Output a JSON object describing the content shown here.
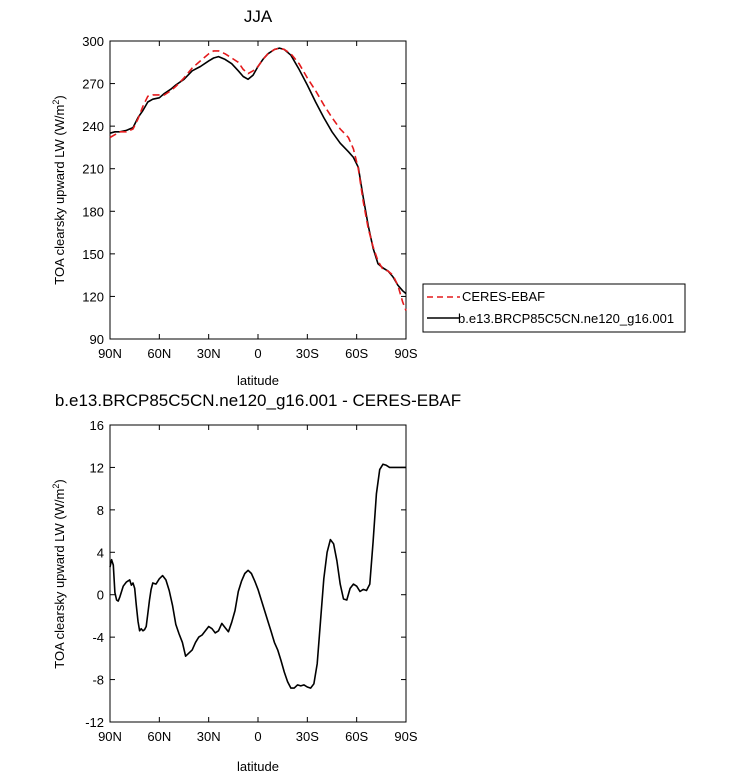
{
  "chart_data": [
    {
      "type": "line",
      "title": "JJA",
      "xlabel": "latitude",
      "ylabel": "TOA clearsky upward LW (W/m",
      "ylabel_sup": "2",
      "ylabel_end": ")",
      "xlim": [
        90,
        -90
      ],
      "ylim": [
        90,
        300
      ],
      "x_ticks": [
        90,
        60,
        30,
        0,
        -30,
        -60,
        -90
      ],
      "x_tick_labels": [
        "90N",
        "60N",
        "30N",
        "0",
        "30S",
        "60S",
        "90S"
      ],
      "y_ticks": [
        90,
        120,
        150,
        180,
        210,
        240,
        270,
        300
      ],
      "y_tick_labels": [
        "90",
        "120",
        "150",
        "180",
        "210",
        "240",
        "270",
        "300"
      ],
      "legend": "outside-right",
      "series": [
        {
          "name": "CERES-EBAF",
          "color": "#e41a1c",
          "dash": "dashed",
          "x": [
            90,
            87,
            84,
            80,
            76,
            73,
            70,
            67,
            64,
            60,
            57,
            53,
            50,
            45,
            40,
            35,
            30,
            27,
            24,
            20,
            16,
            12,
            9,
            6,
            3,
            0,
            -3,
            -6,
            -10,
            -13,
            -16,
            -20,
            -25,
            -30,
            -35,
            -40,
            -45,
            -50,
            -55,
            -58,
            -61,
            -64,
            -67,
            -70,
            -73,
            -76,
            -79,
            -82,
            -85,
            -88,
            -90
          ],
          "y": [
            232,
            234,
            236,
            236,
            238,
            245,
            254,
            261,
            262,
            262,
            262,
            265,
            268,
            274,
            281,
            286,
            291,
            293,
            293,
            291,
            288,
            285,
            280,
            277,
            279,
            282,
            287,
            291,
            294,
            295,
            294,
            291,
            284,
            274,
            265,
            255,
            246,
            238,
            232,
            224,
            210,
            187,
            168,
            155,
            145,
            139,
            138,
            135,
            128,
            116,
            110
          ]
        },
        {
          "name": "b.e13.BRCP85C5CN.ne120_g16.001",
          "color": "#000000",
          "dash": "solid",
          "x": [
            90,
            87,
            84,
            80,
            76,
            73,
            70,
            67,
            64,
            60,
            57,
            53,
            50,
            45,
            40,
            35,
            30,
            27,
            24,
            20,
            16,
            12,
            9,
            6,
            3,
            0,
            -3,
            -6,
            -10,
            -13,
            -16,
            -20,
            -25,
            -30,
            -35,
            -40,
            -45,
            -50,
            -55,
            -58,
            -61,
            -64,
            -67,
            -70,
            -73,
            -76,
            -79,
            -82,
            -85,
            -88,
            -90
          ],
          "y": [
            235,
            236,
            236,
            237,
            239,
            246,
            251,
            257,
            259,
            260,
            263,
            266,
            269,
            273,
            279,
            282,
            286,
            288,
            289,
            287,
            284,
            279,
            275,
            273,
            276,
            282,
            287,
            291,
            294,
            295,
            294,
            290,
            280,
            269,
            257,
            246,
            236,
            228,
            222,
            218,
            211,
            190,
            170,
            154,
            143,
            140,
            138,
            134,
            128,
            124,
            122
          ]
        }
      ]
    },
    {
      "type": "line",
      "title": "b.e13.BRCP85C5CN.ne120_g16.001 - CERES-EBAF",
      "xlabel": "latitude",
      "ylabel": "TOA clearsky upward LW (W/m",
      "ylabel_sup": "2",
      "ylabel_end": ")",
      "xlim": [
        90,
        -90
      ],
      "ylim": [
        -12,
        16
      ],
      "x_ticks": [
        90,
        60,
        30,
        0,
        -30,
        -60,
        -90
      ],
      "x_tick_labels": [
        "90N",
        "60N",
        "30N",
        "0",
        "30S",
        "60S",
        "90S"
      ],
      "y_ticks": [
        -12,
        -8,
        -4,
        0,
        4,
        8,
        12,
        16
      ],
      "y_tick_labels": [
        "-12",
        "-8",
        "-4",
        "0",
        "4",
        "8",
        "12",
        "16"
      ],
      "series": [
        {
          "color": "#000000",
          "dash": "solid",
          "x": [
            90,
            89,
            88,
            87,
            86,
            85,
            84,
            82,
            80,
            78,
            77,
            76,
            75,
            74,
            73,
            72,
            71,
            70,
            69,
            68,
            67,
            66,
            65,
            64,
            62,
            60,
            58,
            56,
            54,
            52,
            50,
            48,
            46,
            44,
            42,
            40,
            38,
            36,
            34,
            32,
            30,
            28,
            26,
            24,
            22,
            20,
            18,
            16,
            14,
            12,
            10,
            8,
            6,
            4,
            2,
            0,
            -2,
            -4,
            -6,
            -8,
            -10,
            -12,
            -14,
            -16,
            -18,
            -20,
            -22,
            -24,
            -26,
            -28,
            -30,
            -32,
            -34,
            -36,
            -38,
            -40,
            -42,
            -44,
            -46,
            -48,
            -50,
            -52,
            -54,
            -56,
            -58,
            -60,
            -62,
            -64,
            -66,
            -68,
            -70,
            -72,
            -74,
            -76,
            -78,
            -80,
            -82,
            -84,
            -86,
            -88,
            -89,
            -90
          ],
          "y": [
            2.6,
            3.3,
            2.8,
            0.2,
            -0.5,
            -0.6,
            -0.2,
            0.8,
            1.2,
            1.4,
            0.9,
            1.1,
            0.6,
            -1.0,
            -2.5,
            -3.4,
            -3.2,
            -3.4,
            -3.3,
            -3.0,
            -1.8,
            -0.5,
            0.5,
            1.1,
            1.0,
            1.5,
            1.8,
            1.4,
            0.4,
            -1.0,
            -2.8,
            -3.7,
            -4.5,
            -5.8,
            -5.5,
            -5.2,
            -4.5,
            -4.0,
            -3.8,
            -3.4,
            -3.0,
            -3.2,
            -3.6,
            -3.4,
            -2.7,
            -3.1,
            -3.5,
            -2.6,
            -1.5,
            0.3,
            1.3,
            2.0,
            2.3,
            2.0,
            1.3,
            0.5,
            -0.5,
            -1.5,
            -2.5,
            -3.5,
            -4.5,
            -5.2,
            -6.2,
            -7.3,
            -8.2,
            -8.8,
            -8.8,
            -8.5,
            -8.6,
            -8.5,
            -8.7,
            -8.8,
            -8.4,
            -6.5,
            -2.5,
            1.5,
            4.0,
            5.2,
            4.8,
            3.2,
            1.0,
            -0.4,
            -0.5,
            0.6,
            1.0,
            0.8,
            0.3,
            0.5,
            0.4,
            1.0,
            5.0,
            9.5,
            11.8,
            12.3,
            12.2,
            12.0,
            12.0,
            12.0,
            12.0,
            12.0,
            12.0,
            12.0
          ]
        }
      ]
    }
  ]
}
